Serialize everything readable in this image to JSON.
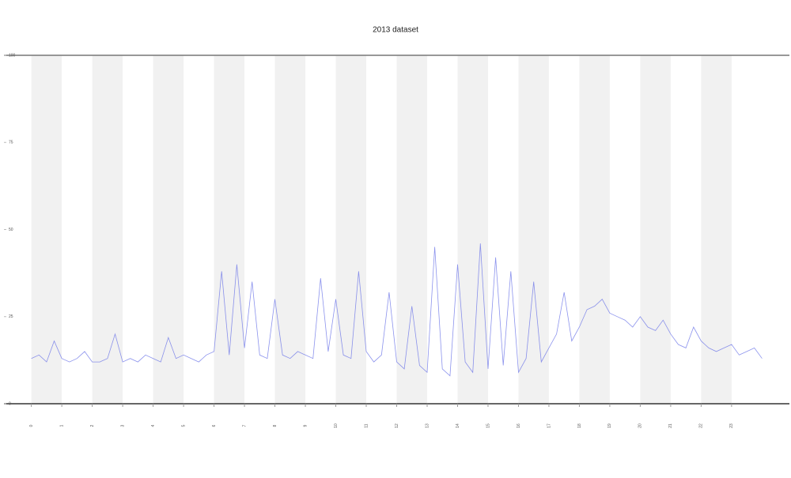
{
  "chart_data": {
    "type": "line",
    "title": "2013 dataset",
    "x": [
      0,
      0.25,
      0.5,
      0.75,
      1,
      1.25,
      1.5,
      1.75,
      2,
      2.25,
      2.5,
      2.75,
      3,
      3.25,
      3.5,
      3.75,
      4,
      4.25,
      4.5,
      4.75,
      5,
      5.25,
      5.5,
      5.75,
      6,
      6.25,
      6.5,
      6.75,
      7,
      7.25,
      7.5,
      7.75,
      8,
      8.25,
      8.5,
      8.75,
      9,
      9.25,
      9.5,
      9.75,
      10,
      10.25,
      10.5,
      10.75,
      11,
      11.25,
      11.5,
      11.75,
      12,
      12.25,
      12.5,
      12.75,
      13,
      13.25,
      13.5,
      13.75,
      14,
      14.25,
      14.5,
      14.75,
      15,
      15.25,
      15.5,
      15.75,
      16,
      16.25,
      16.5,
      16.75,
      17,
      17.25,
      17.5,
      17.75,
      18,
      18.25,
      18.5,
      18.75,
      19,
      19.25,
      19.5,
      19.75,
      20,
      20.25,
      20.5,
      20.75,
      21,
      21.25,
      21.5,
      21.75,
      22,
      22.25,
      22.5,
      22.75,
      23,
      23.25,
      23.5,
      23.75,
      24
    ],
    "series": [
      {
        "color": "#6f78e8",
        "values": [
          13,
          14,
          12,
          18,
          13,
          12,
          13,
          15,
          12,
          12,
          13,
          20,
          12,
          13,
          12,
          14,
          13,
          12,
          19,
          13,
          14,
          13,
          12,
          14,
          15,
          38,
          14,
          40,
          16,
          35,
          14,
          13,
          30,
          14,
          13,
          15,
          14,
          13,
          36,
          15,
          30,
          14,
          13,
          38,
          15,
          12,
          14,
          32,
          12,
          10,
          28,
          11,
          9,
          45,
          10,
          8,
          40,
          12,
          9,
          46,
          10,
          42,
          11,
          38,
          9,
          13,
          35,
          12,
          16,
          20,
          32,
          18,
          22,
          27,
          28,
          30,
          26,
          25,
          24,
          22,
          25,
          22,
          21,
          24,
          20,
          17,
          16,
          22,
          18,
          16,
          15,
          16,
          17,
          14,
          15,
          16,
          13
        ]
      }
    ],
    "xlim": [
      -0.9,
      24.9
    ],
    "ylim": [
      0,
      100
    ],
    "xticks": [
      0,
      1,
      2,
      3,
      4,
      5,
      6,
      7,
      8,
      9,
      10,
      11,
      12,
      13,
      14,
      15,
      16,
      17,
      18,
      19,
      20,
      21,
      22,
      23
    ],
    "yticks": [
      0,
      25,
      50,
      75,
      100
    ],
    "grid": false,
    "shade_color": "#f1f1f1"
  }
}
